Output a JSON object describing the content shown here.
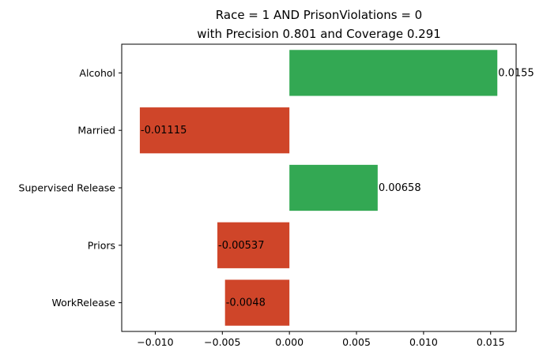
{
  "chart_data": {
    "type": "bar",
    "orientation": "horizontal",
    "title_line1": "Race = 1 AND PrisonViolations = 0",
    "title_line2": "with Precision 0.801 and Coverage 0.291",
    "categories": [
      "Alcohol",
      "Married",
      "Supervised Release",
      "Priors",
      "WorkRelease"
    ],
    "values": [
      0.0155,
      -0.01115,
      0.00658,
      -0.00537,
      -0.0048
    ],
    "value_labels": [
      "0.0155",
      "-0.01115",
      "0.00658",
      "-0.00537",
      "-0.0048"
    ],
    "xlim": [
      -0.0125,
      0.0169
    ],
    "xticks": [
      -0.01,
      -0.005,
      0.0,
      0.005,
      0.01,
      0.015
    ],
    "xtick_labels": [
      "−0.010",
      "−0.005",
      "0.000",
      "0.005",
      "0.010",
      "0.015"
    ],
    "grid": false,
    "colors": {
      "positive": "#33a853",
      "negative": "#cf4529"
    }
  }
}
